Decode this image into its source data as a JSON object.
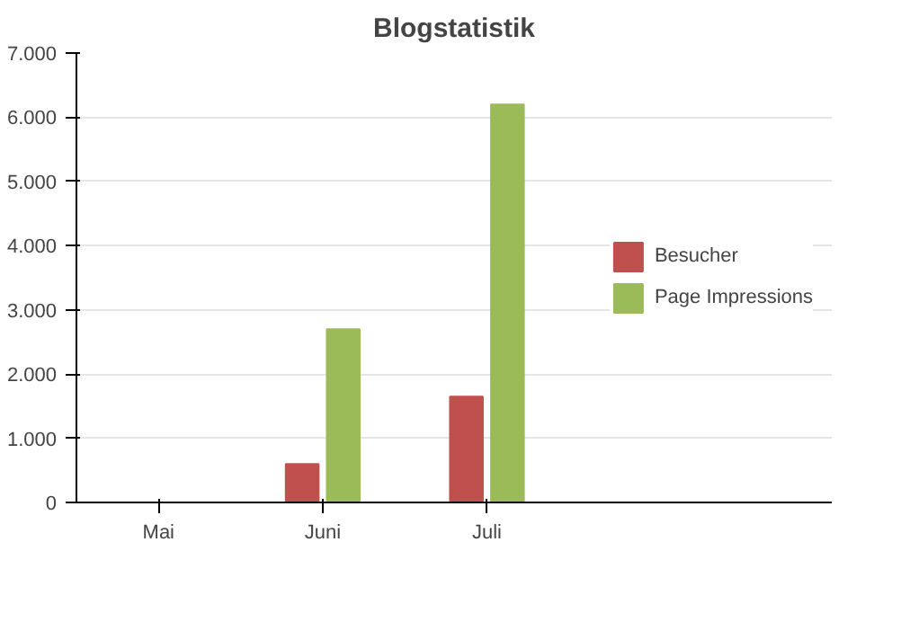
{
  "chart_data": {
    "type": "bar",
    "title": "Blogstatistik",
    "categories": [
      "Mai",
      "Juni",
      "Juli"
    ],
    "series": [
      {
        "name": "Besucher",
        "color": "#c0504d",
        "values": [
          0,
          600,
          1650
        ]
      },
      {
        "name": "Page Impressions",
        "color": "#9bbb59",
        "values": [
          0,
          2700,
          6200
        ]
      }
    ],
    "ylim": [
      0,
      7000
    ],
    "yticks": [
      0,
      {
        "value": 1000,
        "label": "1.000"
      },
      {
        "value": 2000,
        "label": "2.000"
      },
      {
        "value": 3000,
        "label": "3.000"
      },
      {
        "value": 4000,
        "label": "4.000"
      },
      {
        "value": 5000,
        "label": "5.000"
      },
      {
        "value": 6000,
        "label": "6.000"
      },
      {
        "value": 7000,
        "label": "7.000"
      }
    ],
    "grid": "y",
    "legend": "right"
  }
}
